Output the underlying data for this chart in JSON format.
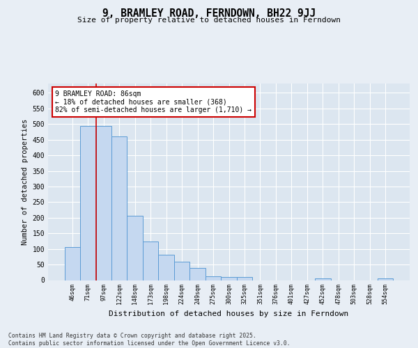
{
  "title": "9, BRAMLEY ROAD, FERNDOWN, BH22 9JJ",
  "subtitle": "Size of property relative to detached houses in Ferndown",
  "xlabel": "Distribution of detached houses by size in Ferndown",
  "ylabel": "Number of detached properties",
  "categories": [
    "46sqm",
    "71sqm",
    "97sqm",
    "122sqm",
    "148sqm",
    "173sqm",
    "198sqm",
    "224sqm",
    "249sqm",
    "275sqm",
    "300sqm",
    "325sqm",
    "351sqm",
    "376sqm",
    "401sqm",
    "427sqm",
    "452sqm",
    "478sqm",
    "503sqm",
    "528sqm",
    "554sqm"
  ],
  "values": [
    105,
    493,
    493,
    460,
    207,
    124,
    82,
    58,
    38,
    13,
    10,
    10,
    0,
    0,
    0,
    0,
    5,
    0,
    0,
    0,
    5
  ],
  "bar_color": "#c5d8f0",
  "bar_edge_color": "#5b9bd5",
  "vline_x": 1.5,
  "vline_color": "#cc0000",
  "annotation_text": "9 BRAMLEY ROAD: 86sqm\n← 18% of detached houses are smaller (368)\n82% of semi-detached houses are larger (1,710) →",
  "annotation_box_color": "#cc0000",
  "bg_color": "#e8eef5",
  "plot_bg_color": "#dce6f0",
  "grid_color": "#ffffff",
  "footer": "Contains HM Land Registry data © Crown copyright and database right 2025.\nContains public sector information licensed under the Open Government Licence v3.0.",
  "ylim": [
    0,
    630
  ],
  "yticks": [
    0,
    50,
    100,
    150,
    200,
    250,
    300,
    350,
    400,
    450,
    500,
    550,
    600
  ]
}
